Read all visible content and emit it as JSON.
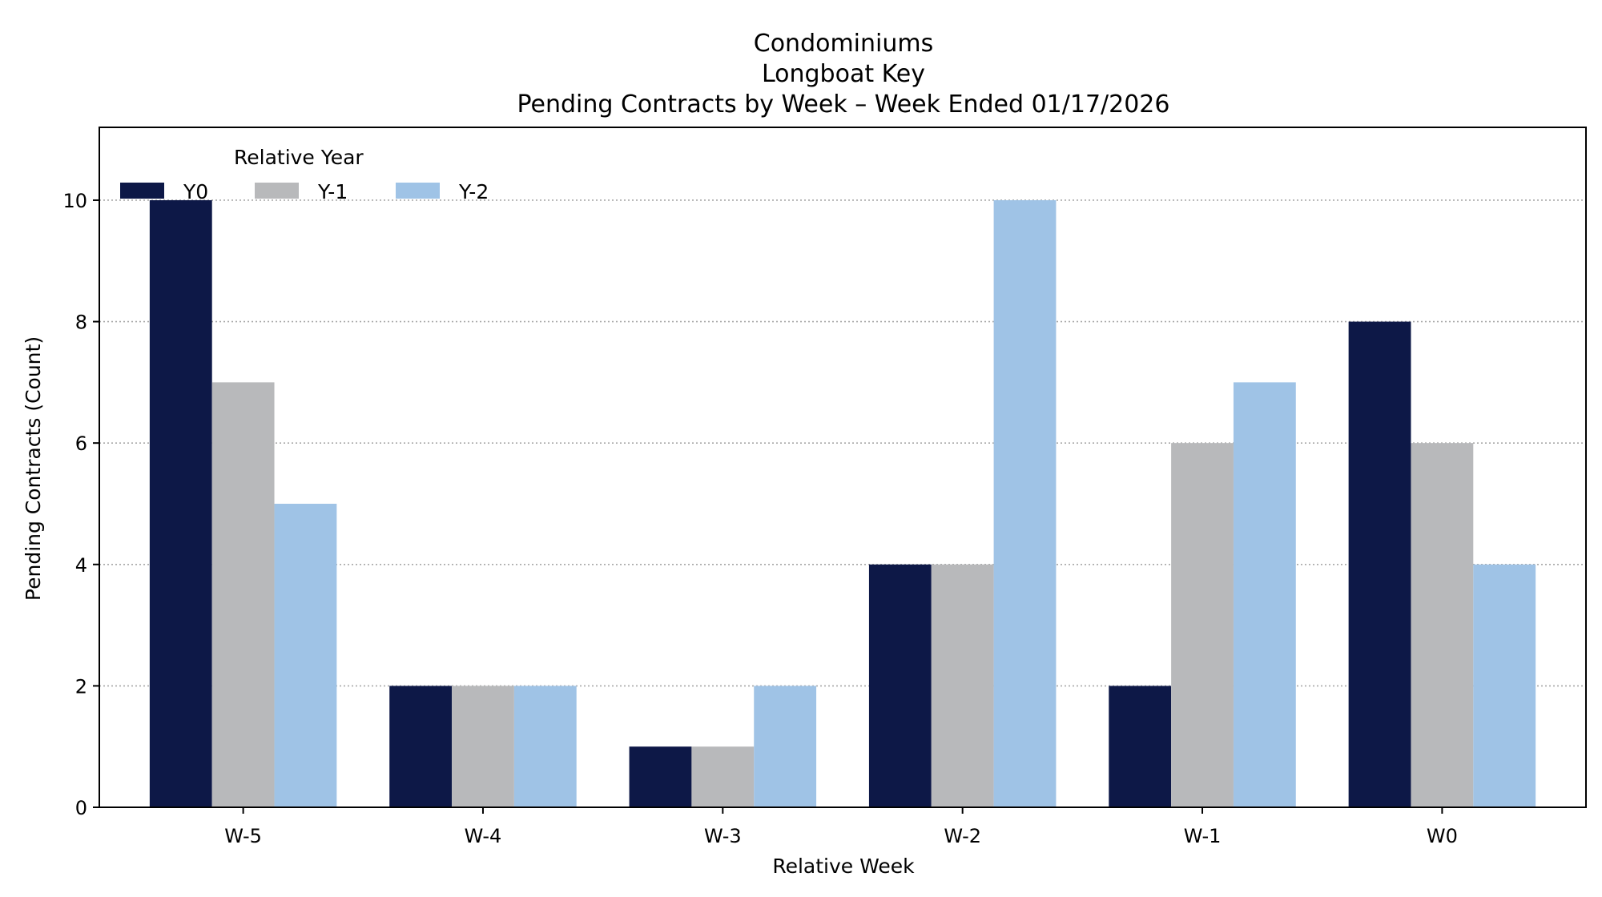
{
  "chart_data": {
    "type": "bar",
    "title_lines": [
      "Condominiums",
      "Longboat Key",
      "Pending Contracts by Week – Week Ended 01/17/2026"
    ],
    "xlabel": "Relative Week",
    "ylabel": "Pending Contracts (Count)",
    "categories": [
      "W-5",
      "W-4",
      "W-3",
      "W-2",
      "W-1",
      "W0"
    ],
    "series": [
      {
        "name": "Y0",
        "values": [
          10,
          2,
          1,
          4,
          2,
          8
        ],
        "color": "#0d1847"
      },
      {
        "name": "Y-1",
        "values": [
          7,
          2,
          1,
          4,
          6,
          6
        ],
        "color": "#b8b9bb"
      },
      {
        "name": "Y-2",
        "values": [
          5,
          2,
          2,
          10,
          7,
          4
        ],
        "color": "#9fc3e6"
      }
    ],
    "ylim": [
      0,
      11.2
    ],
    "yticks": [
      0,
      2,
      4,
      6,
      8,
      10
    ],
    "grid": "y-dotted",
    "legend": {
      "title": "Relative Year",
      "placement": "top-left"
    }
  }
}
